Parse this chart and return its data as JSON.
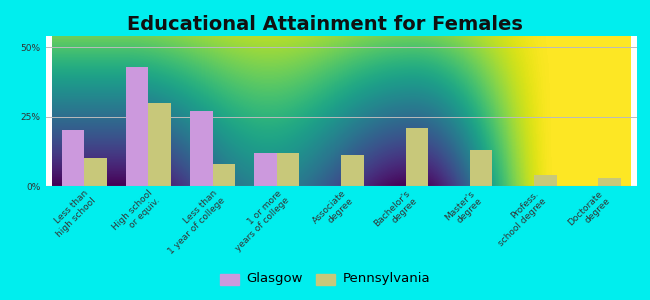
{
  "title": "Educational Attainment for Females",
  "categories": [
    "Less than\nhigh school",
    "High school\nor equiv.",
    "Less than\n1 year of college",
    "1 or more\nyears of college",
    "Associate\ndegree",
    "Bachelor's\ndegree",
    "Master's\ndegree",
    "Profess.\nschool degree",
    "Doctorate\ndegree"
  ],
  "glasgow": [
    20.0,
    43.0,
    27.0,
    12.0,
    0.0,
    0.0,
    0.0,
    0.0,
    0.0
  ],
  "pennsylvania": [
    10.0,
    30.0,
    8.0,
    12.0,
    11.0,
    21.0,
    13.0,
    4.0,
    3.0
  ],
  "glasgow_color": "#cc99dd",
  "pennsylvania_color": "#c8c87a",
  "bg_outer": "#00eeee",
  "bg_plot_top": "#f5faf0",
  "bg_plot_bottom": "#ddeedd",
  "grid_color": "#bbbbbb",
  "yticks": [
    0,
    25,
    50
  ],
  "ylim": [
    0,
    54
  ],
  "bar_width": 0.35,
  "title_fontsize": 14,
  "tick_fontsize": 6.5,
  "legend_fontsize": 9.5
}
